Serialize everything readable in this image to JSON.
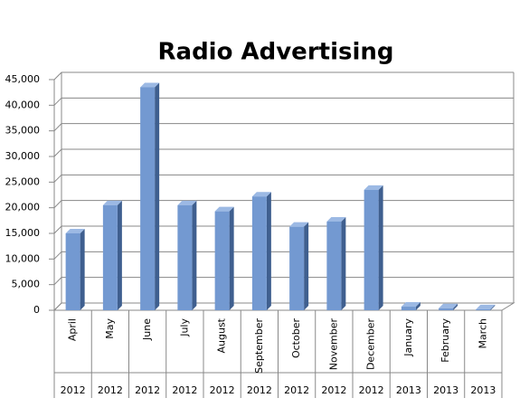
{
  "chart_data": {
    "type": "bar",
    "title": "Radio Advertising",
    "categories": [
      "April",
      "May",
      "June",
      "July",
      "August",
      "September",
      "October",
      "November",
      "December",
      "January",
      "February",
      "March"
    ],
    "groups": [
      "2012",
      "2012",
      "2012",
      "2012",
      "2012",
      "2012",
      "2012",
      "2012",
      "2012",
      "2013",
      "2013",
      "2013"
    ],
    "values": [
      15000,
      20500,
      43500,
      20500,
      19300,
      22200,
      16300,
      17300,
      23500,
      700,
      400,
      200
    ],
    "color": "#7399d1",
    "ylim": [
      0,
      45000
    ],
    "yticks": [
      0,
      {
        "value": 5000,
        "label": "5,000"
      },
      {
        "value": 10000,
        "label": "10,000"
      },
      {
        "value": 15000,
        "label": "15,000"
      },
      {
        "value": 20000,
        "label": "20,000"
      },
      {
        "value": 25000,
        "label": "25,000"
      },
      {
        "value": 30000,
        "label": "30,000"
      },
      {
        "value": 35000,
        "label": "35,000"
      },
      {
        "value": 40000,
        "label": "40,000"
      },
      {
        "value": 45000,
        "label": "45,000"
      }
    ],
    "grid": true
  }
}
